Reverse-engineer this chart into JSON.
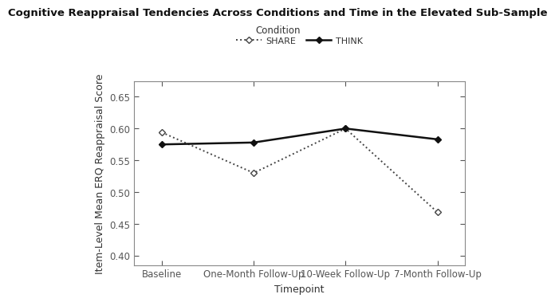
{
  "title": "Cognitive Reappraisal Tendencies Across Conditions and Time in the Elevated Sub-Sample",
  "xlabel": "Timepoint",
  "ylabel": "Item-Level Mean ERQ Reappraisal Score",
  "timepoints": [
    "Baseline",
    "One-Month Follow-Up",
    "10-Week Follow-Up",
    "7-Month Follow-Up"
  ],
  "share_values": [
    0.594,
    0.53,
    0.6,
    0.468
  ],
  "think_values": [
    0.575,
    0.578,
    0.6,
    0.583
  ],
  "ylim": [
    0.385,
    0.675
  ],
  "yticks": [
    0.4,
    0.45,
    0.5,
    0.55,
    0.6,
    0.65
  ],
  "share_color": "#444444",
  "think_color": "#111111",
  "background_color": "#ffffff",
  "legend_title": "Condition",
  "share_label": "SHARE",
  "think_label": "THINK",
  "title_fontsize": 9.5,
  "axis_label_fontsize": 9,
  "tick_fontsize": 8.5,
  "legend_fontsize": 8
}
